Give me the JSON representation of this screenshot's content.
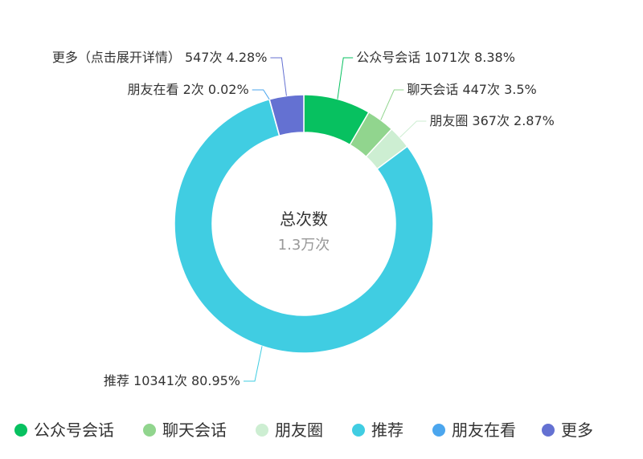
{
  "chart_data": {
    "type": "pie",
    "center_title": "总次数",
    "center_value": "1.3万次",
    "slices": [
      {
        "name": "公众号会话",
        "value": 1071,
        "percent": "8.38%",
        "value_label": "1071次",
        "color": "#07c160"
      },
      {
        "name": "聊天会话",
        "value": 447,
        "percent": "3.5%",
        "value_label": "447次",
        "color": "#91d58e"
      },
      {
        "name": "朋友圈",
        "value": 367,
        "percent": "2.87%",
        "value_label": "367次",
        "color": "#cdeed2"
      },
      {
        "name": "推荐",
        "value": 10341,
        "percent": "80.95%",
        "value_label": "10341次",
        "color": "#40cde2"
      },
      {
        "name": "朋友在看",
        "value": 2,
        "percent": "0.02%",
        "value_label": "2次",
        "color": "#4ba6ee"
      },
      {
        "name": "更多（点击展开详情）",
        "value": 547,
        "percent": "4.28%",
        "value_label": "547次",
        "color": "#6471d2"
      }
    ],
    "legend": {
      "placement": "bottom",
      "items": [
        "公众号会话",
        "聊天会话",
        "朋友圈",
        "推荐",
        "朋友在看",
        "更多"
      ]
    }
  }
}
